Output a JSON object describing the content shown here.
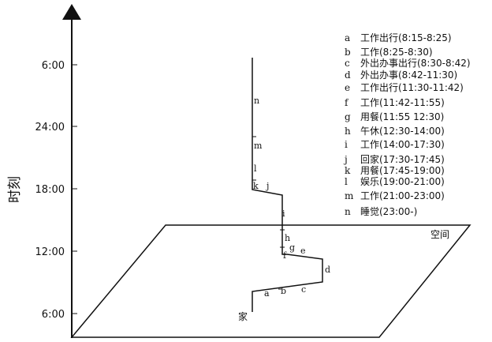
{
  "axis": {
    "y_title": "时刻",
    "ticks": [
      {
        "label": "6:00",
        "hour": 30
      },
      {
        "label": "24:00",
        "hour": 24
      },
      {
        "label": "18:00",
        "hour": 18
      },
      {
        "label": "12:00",
        "hour": 12
      },
      {
        "label": "6:00",
        "hour": 6
      }
    ]
  },
  "plane": {
    "space_label": "空间",
    "home_label": "家"
  },
  "path_labels": [
    {
      "letter": "a"
    },
    {
      "letter": "b"
    },
    {
      "letter": "c"
    },
    {
      "letter": "d"
    },
    {
      "letter": "e"
    },
    {
      "letter": "f"
    },
    {
      "letter": "g"
    },
    {
      "letter": "h"
    },
    {
      "letter": "i"
    },
    {
      "letter": "j"
    },
    {
      "letter": "k"
    },
    {
      "letter": "l"
    },
    {
      "letter": "m"
    },
    {
      "letter": "n"
    }
  ],
  "legend": [
    {
      "letter": "a",
      "text": "工作出行(8:15-8:25)"
    },
    {
      "letter": "b",
      "text": "工作(8:25-8:30)"
    },
    {
      "letter": "c",
      "text": "外出办事出行(8:30-8:42)"
    },
    {
      "letter": "d",
      "text": "外出办事(8:42-11:30)"
    },
    {
      "letter": "e",
      "text": "工作出行(11:30-11:42)"
    },
    {
      "letter": "f",
      "text": "工作(11:42-11:55)"
    },
    {
      "letter": "g",
      "text": "用餐(11:55 12:30)"
    },
    {
      "letter": "h",
      "text": "午休(12:30-14:00)"
    },
    {
      "letter": "i",
      "text": "工作(14:00-17:30)"
    },
    {
      "letter": "j",
      "text": "回家(17:30-17:45)"
    },
    {
      "letter": "k",
      "text": "用餐(17:45-19:00)"
    },
    {
      "letter": "l",
      "text": "娱乐(19:00-21:00)"
    },
    {
      "letter": "m",
      "text": "工作(21:00-23:00)"
    },
    {
      "letter": "n",
      "text": "睡觉(23:00-)"
    }
  ]
}
